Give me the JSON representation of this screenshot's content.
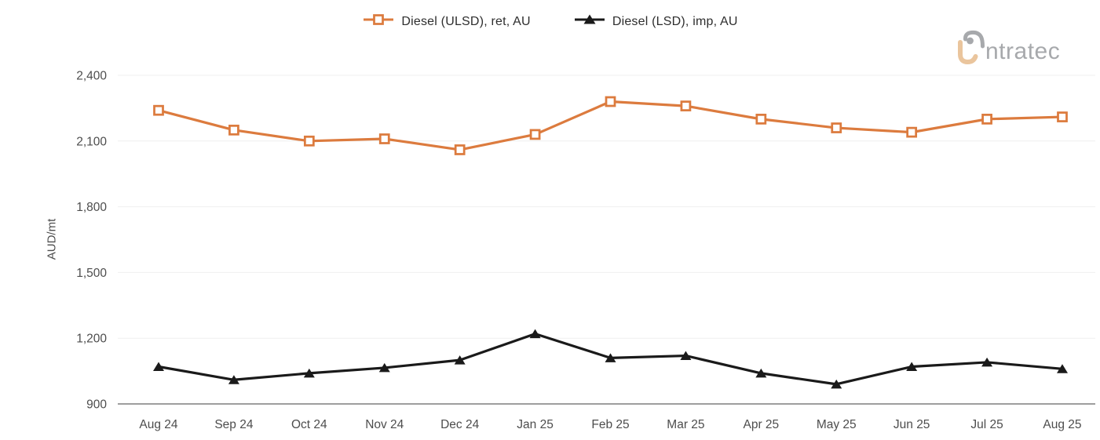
{
  "legend": {
    "items": [
      {
        "label": "Diesel (ULSD), ret, AU",
        "marker": "square"
      },
      {
        "label": "Diesel (LSD), imp, AU",
        "marker": "triangle"
      }
    ]
  },
  "logo": {
    "text": "intratec"
  },
  "colors": {
    "series1": "#DC7B3E",
    "series2": "#1A1A1A",
    "grid": "#EFEFEF",
    "axis": "#7F7F7F",
    "tick_text": "#4D4D4D",
    "legend_text": "#2E2E2E",
    "logo_gray": "#A7A9AC",
    "logo_tan": "#EAC59D"
  },
  "chart_data": {
    "type": "line",
    "title": "",
    "xlabel": "",
    "ylabel": "AUD/mt",
    "ylim": [
      900,
      2400
    ],
    "yticks": [
      900,
      1200,
      1500,
      1800,
      2100,
      2400
    ],
    "grid": "horizontal",
    "legend_position": "top-center",
    "categories": [
      "Aug 24",
      "Sep 24",
      "Oct 24",
      "Nov 24",
      "Dec 24",
      "Jan 25",
      "Feb 25",
      "Mar 25",
      "Apr 25",
      "May 25",
      "Jun 25",
      "Jul 25",
      "Aug 25"
    ],
    "series": [
      {
        "name": "Diesel (ULSD), ret, AU",
        "color": "#DC7B3E",
        "marker": "square",
        "values": [
          2240,
          2150,
          2100,
          2110,
          2060,
          2130,
          2280,
          2260,
          2200,
          2160,
          2140,
          2200,
          2210
        ]
      },
      {
        "name": "Diesel (LSD), imp, AU",
        "color": "#1A1A1A",
        "marker": "triangle",
        "values": [
          1070,
          1010,
          1040,
          1065,
          1100,
          1220,
          1110,
          1120,
          1040,
          990,
          1070,
          1090,
          1060
        ]
      }
    ]
  }
}
